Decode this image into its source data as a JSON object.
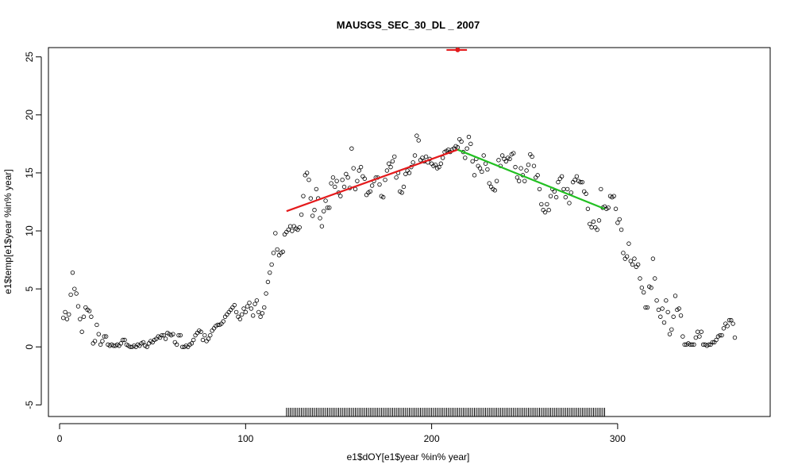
{
  "chart_data": {
    "type": "scatter",
    "title": "MAUSGS_SEC_30_DL _ 2007",
    "xlabel": "e1$dOY[e1$year %in% year]",
    "ylabel": "e1$temp[e1$year %in% year]",
    "xlim": [
      -6,
      382
    ],
    "ylim": [
      -6,
      25.8
    ],
    "xticks": [
      "0",
      "100",
      "200",
      "300"
    ],
    "xtick_values": [
      0,
      100,
      200,
      300
    ],
    "yticks": [
      "-5",
      "0",
      "5",
      "10",
      "15",
      "20",
      "25"
    ],
    "ytick_values": [
      -5,
      0,
      5,
      10,
      15,
      20,
      25
    ],
    "grid": false,
    "points": [
      [
        2,
        2.5
      ],
      [
        3,
        3.0
      ],
      [
        4,
        2.4
      ],
      [
        5,
        2.8
      ],
      [
        6,
        4.5
      ],
      [
        7,
        6.4
      ],
      [
        8,
        5.0
      ],
      [
        9,
        4.6
      ],
      [
        10,
        3.5
      ],
      [
        11,
        2.4
      ],
      [
        12,
        1.3
      ],
      [
        13,
        2.6
      ],
      [
        14,
        3.4
      ],
      [
        15,
        3.2
      ],
      [
        16,
        3.1
      ],
      [
        17,
        2.6
      ],
      [
        18,
        0.3
      ],
      [
        19,
        0.5
      ],
      [
        20,
        1.9
      ],
      [
        21,
        1.1
      ],
      [
        22,
        0.2
      ],
      [
        23,
        0.5
      ],
      [
        24,
        0.9
      ],
      [
        25,
        0.9
      ],
      [
        26,
        0.2
      ],
      [
        27,
        0.1
      ],
      [
        28,
        0.2
      ],
      [
        29,
        0.1
      ],
      [
        30,
        0.1
      ],
      [
        31,
        0.2
      ],
      [
        32,
        0.1
      ],
      [
        33,
        0.3
      ],
      [
        34,
        0.6
      ],
      [
        35,
        0.6
      ],
      [
        36,
        0.2
      ],
      [
        37,
        0.1
      ],
      [
        38,
        0.0
      ],
      [
        39,
        0.0
      ],
      [
        40,
        0.1
      ],
      [
        41,
        0.0
      ],
      [
        42,
        0.2
      ],
      [
        43,
        0.1
      ],
      [
        44,
        0.3
      ],
      [
        45,
        0.4
      ],
      [
        46,
        0.1
      ],
      [
        47,
        0.0
      ],
      [
        48,
        0.3
      ],
      [
        49,
        0.5
      ],
      [
        50,
        0.4
      ],
      [
        51,
        0.6
      ],
      [
        52,
        0.7
      ],
      [
        53,
        0.9
      ],
      [
        54,
        0.8
      ],
      [
        55,
        1.0
      ],
      [
        56,
        1.0
      ],
      [
        57,
        0.7
      ],
      [
        58,
        1.2
      ],
      [
        59,
        1.1
      ],
      [
        60,
        1.0
      ],
      [
        61,
        1.1
      ],
      [
        62,
        0.4
      ],
      [
        63,
        0.2
      ],
      [
        64,
        1.0
      ],
      [
        65,
        1.0
      ],
      [
        66,
        0.0
      ],
      [
        67,
        0.0
      ],
      [
        68,
        0.1
      ],
      [
        69,
        0.0
      ],
      [
        70,
        0.2
      ],
      [
        71,
        0.3
      ],
      [
        72,
        0.6
      ],
      [
        73,
        1.0
      ],
      [
        74,
        1.2
      ],
      [
        75,
        1.4
      ],
      [
        76,
        1.3
      ],
      [
        77,
        0.6
      ],
      [
        78,
        1.0
      ],
      [
        79,
        0.5
      ],
      [
        80,
        0.7
      ],
      [
        81,
        1.0
      ],
      [
        82,
        1.4
      ],
      [
        83,
        1.6
      ],
      [
        84,
        1.8
      ],
      [
        85,
        1.9
      ],
      [
        86,
        1.9
      ],
      [
        87,
        2.0
      ],
      [
        88,
        2.2
      ],
      [
        89,
        2.6
      ],
      [
        90,
        2.8
      ],
      [
        91,
        3.0
      ],
      [
        92,
        3.2
      ],
      [
        93,
        3.4
      ],
      [
        94,
        3.6
      ],
      [
        95,
        3.0
      ],
      [
        96,
        2.6
      ],
      [
        97,
        2.4
      ],
      [
        98,
        2.8
      ],
      [
        99,
        3.3
      ],
      [
        100,
        3.0
      ],
      [
        101,
        3.5
      ],
      [
        102,
        3.8
      ],
      [
        103,
        3.3
      ],
      [
        104,
        2.7
      ],
      [
        105,
        3.7
      ],
      [
        106,
        4.0
      ],
      [
        107,
        3.0
      ],
      [
        108,
        2.6
      ],
      [
        109,
        2.9
      ],
      [
        110,
        3.4
      ],
      [
        111,
        4.6
      ],
      [
        112,
        5.6
      ],
      [
        113,
        6.4
      ],
      [
        114,
        7.1
      ],
      [
        115,
        8.1
      ],
      [
        116,
        9.8
      ],
      [
        117,
        8.4
      ],
      [
        118,
        7.9
      ],
      [
        119,
        8.1
      ],
      [
        120,
        8.2
      ],
      [
        121,
        9.7
      ],
      [
        122,
        9.9
      ],
      [
        123,
        10.1
      ],
      [
        124,
        10.4
      ],
      [
        125,
        10.0
      ],
      [
        126,
        10.4
      ],
      [
        127,
        10.2
      ],
      [
        128,
        10.1
      ],
      [
        129,
        10.3
      ],
      [
        130,
        11.4
      ],
      [
        131,
        13.0
      ],
      [
        132,
        14.8
      ],
      [
        133,
        15.0
      ],
      [
        134,
        14.4
      ],
      [
        135,
        12.8
      ],
      [
        136,
        11.3
      ],
      [
        137,
        11.8
      ],
      [
        138,
        13.6
      ],
      [
        139,
        12.8
      ],
      [
        140,
        11.1
      ],
      [
        141,
        10.4
      ],
      [
        142,
        11.7
      ],
      [
        143,
        12.6
      ],
      [
        144,
        12.0
      ],
      [
        145,
        12.0
      ],
      [
        146,
        14.1
      ],
      [
        147,
        14.6
      ],
      [
        148,
        13.8
      ],
      [
        149,
        14.3
      ],
      [
        150,
        13.3
      ],
      [
        151,
        13.0
      ],
      [
        152,
        14.4
      ],
      [
        153,
        13.8
      ],
      [
        154,
        14.9
      ],
      [
        155,
        14.6
      ],
      [
        156,
        13.7
      ],
      [
        157,
        17.1
      ],
      [
        158,
        15.4
      ],
      [
        159,
        13.6
      ],
      [
        160,
        14.3
      ],
      [
        161,
        15.2
      ],
      [
        162,
        15.5
      ],
      [
        163,
        14.7
      ],
      [
        164,
        14.5
      ],
      [
        165,
        13.1
      ],
      [
        166,
        13.3
      ],
      [
        167,
        13.4
      ],
      [
        168,
        13.9
      ],
      [
        169,
        14.3
      ],
      [
        170,
        14.6
      ],
      [
        171,
        14.6
      ],
      [
        172,
        14.0
      ],
      [
        173,
        13.0
      ],
      [
        174,
        12.9
      ],
      [
        175,
        14.4
      ],
      [
        176,
        15.2
      ],
      [
        177,
        15.8
      ],
      [
        178,
        15.5
      ],
      [
        179,
        16.0
      ],
      [
        180,
        16.4
      ],
      [
        181,
        14.6
      ],
      [
        182,
        15.0
      ],
      [
        183,
        13.4
      ],
      [
        184,
        13.3
      ],
      [
        185,
        13.8
      ],
      [
        186,
        14.9
      ],
      [
        187,
        15.2
      ],
      [
        188,
        15.0
      ],
      [
        189,
        15.5
      ],
      [
        190,
        15.9
      ],
      [
        191,
        16.5
      ],
      [
        192,
        18.2
      ],
      [
        193,
        17.8
      ],
      [
        194,
        16.1
      ],
      [
        195,
        16.3
      ],
      [
        196,
        16.0
      ],
      [
        197,
        16.4
      ],
      [
        198,
        15.9
      ],
      [
        199,
        16.2
      ],
      [
        200,
        15.8
      ],
      [
        201,
        15.6
      ],
      [
        202,
        15.7
      ],
      [
        203,
        15.4
      ],
      [
        204,
        15.5
      ],
      [
        205,
        15.8
      ],
      [
        206,
        16.3
      ],
      [
        207,
        16.8
      ],
      [
        208,
        16.9
      ],
      [
        209,
        17.0
      ],
      [
        210,
        16.8
      ],
      [
        211,
        17.0
      ],
      [
        212,
        17.1
      ],
      [
        213,
        17.3
      ],
      [
        214,
        17.2
      ],
      [
        215,
        17.9
      ],
      [
        216,
        17.7
      ],
      [
        217,
        16.8
      ],
      [
        218,
        16.3
      ],
      [
        219,
        17.1
      ],
      [
        220,
        18.1
      ],
      [
        221,
        17.5
      ],
      [
        222,
        16.0
      ],
      [
        223,
        14.8
      ],
      [
        224,
        16.2
      ],
      [
        225,
        15.6
      ],
      [
        226,
        15.4
      ],
      [
        227,
        15.1
      ],
      [
        228,
        16.5
      ],
      [
        229,
        15.8
      ],
      [
        230,
        15.3
      ],
      [
        231,
        14.1
      ],
      [
        232,
        13.8
      ],
      [
        233,
        13.6
      ],
      [
        234,
        13.5
      ],
      [
        235,
        14.3
      ],
      [
        236,
        16.1
      ],
      [
        237,
        15.6
      ],
      [
        238,
        16.5
      ],
      [
        239,
        16.2
      ],
      [
        240,
        16.0
      ],
      [
        241,
        16.3
      ],
      [
        242,
        16.2
      ],
      [
        243,
        16.6
      ],
      [
        244,
        16.7
      ],
      [
        245,
        15.5
      ],
      [
        246,
        14.6
      ],
      [
        247,
        14.3
      ],
      [
        248,
        15.4
      ],
      [
        249,
        14.8
      ],
      [
        250,
        14.3
      ],
      [
        251,
        15.2
      ],
      [
        252,
        15.7
      ],
      [
        253,
        16.6
      ],
      [
        254,
        16.4
      ],
      [
        255,
        15.6
      ],
      [
        256,
        14.6
      ],
      [
        257,
        14.8
      ],
      [
        258,
        13.6
      ],
      [
        259,
        12.3
      ],
      [
        260,
        11.8
      ],
      [
        261,
        11.6
      ],
      [
        262,
        12.3
      ],
      [
        263,
        11.8
      ],
      [
        264,
        13.0
      ],
      [
        265,
        13.6
      ],
      [
        266,
        13.4
      ],
      [
        267,
        12.9
      ],
      [
        268,
        14.2
      ],
      [
        269,
        14.5
      ],
      [
        270,
        14.7
      ],
      [
        271,
        13.6
      ],
      [
        272,
        12.9
      ],
      [
        273,
        13.6
      ],
      [
        274,
        12.4
      ],
      [
        275,
        13.3
      ],
      [
        276,
        14.2
      ],
      [
        277,
        14.4
      ],
      [
        278,
        14.7
      ],
      [
        279,
        14.3
      ],
      [
        280,
        14.2
      ],
      [
        281,
        14.2
      ],
      [
        282,
        13.4
      ],
      [
        283,
        13.2
      ],
      [
        284,
        11.9
      ],
      [
        285,
        10.6
      ],
      [
        286,
        10.3
      ],
      [
        287,
        10.8
      ],
      [
        288,
        10.3
      ],
      [
        289,
        10.1
      ],
      [
        290,
        10.9
      ],
      [
        291,
        13.6
      ],
      [
        292,
        12.0
      ],
      [
        293,
        12.1
      ],
      [
        294,
        11.9
      ],
      [
        295,
        12.0
      ],
      [
        296,
        13.0
      ],
      [
        297,
        12.9
      ],
      [
        298,
        13.0
      ],
      [
        299,
        11.9
      ],
      [
        300,
        10.7
      ],
      [
        301,
        11.0
      ],
      [
        302,
        10.1
      ],
      [
        303,
        8.1
      ],
      [
        304,
        7.6
      ],
      [
        305,
        7.8
      ],
      [
        306,
        8.9
      ],
      [
        307,
        7.4
      ],
      [
        308,
        7.1
      ],
      [
        309,
        7.6
      ],
      [
        310,
        6.9
      ],
      [
        311,
        7.1
      ],
      [
        312,
        5.9
      ],
      [
        313,
        5.1
      ],
      [
        314,
        4.7
      ],
      [
        315,
        3.4
      ],
      [
        316,
        3.4
      ],
      [
        317,
        5.2
      ],
      [
        318,
        5.1
      ],
      [
        319,
        7.6
      ],
      [
        320,
        5.9
      ],
      [
        321,
        4.0
      ],
      [
        322,
        3.2
      ],
      [
        323,
        2.6
      ],
      [
        324,
        3.3
      ],
      [
        325,
        2.1
      ],
      [
        326,
        4.0
      ],
      [
        327,
        3.0
      ],
      [
        328,
        1.1
      ],
      [
        329,
        1.5
      ],
      [
        330,
        2.6
      ],
      [
        331,
        4.4
      ],
      [
        332,
        3.2
      ],
      [
        333,
        3.3
      ],
      [
        334,
        2.7
      ],
      [
        335,
        0.9
      ],
      [
        336,
        0.2
      ],
      [
        337,
        0.2
      ],
      [
        338,
        0.3
      ],
      [
        339,
        0.2
      ],
      [
        340,
        0.2
      ],
      [
        341,
        0.2
      ],
      [
        342,
        0.8
      ],
      [
        343,
        1.3
      ],
      [
        344,
        0.9
      ],
      [
        345,
        1.3
      ],
      [
        346,
        0.2
      ],
      [
        347,
        0.2
      ],
      [
        348,
        0.1
      ],
      [
        349,
        0.2
      ],
      [
        350,
        0.2
      ],
      [
        351,
        0.4
      ],
      [
        352,
        0.4
      ],
      [
        353,
        0.6
      ],
      [
        354,
        0.9
      ],
      [
        355,
        1.0
      ],
      [
        356,
        1.0
      ],
      [
        357,
        1.6
      ],
      [
        358,
        2.0
      ],
      [
        359,
        1.8
      ],
      [
        360,
        2.3
      ],
      [
        361,
        2.3
      ],
      [
        362,
        2.0
      ],
      [
        363,
        0.8
      ]
    ],
    "segments": [
      {
        "color": "#e41a1c",
        "from": [
          122,
          11.7
        ],
        "to": [
          214,
          17.0
        ]
      },
      {
        "color": "#22c022",
        "from": [
          214,
          17.0
        ],
        "to": [
          293,
          11.9
        ]
      },
      {
        "color": "#e41a1c",
        "from": [
          208,
          25.6
        ],
        "to": [
          219,
          25.6
        ],
        "marker_x": 214
      }
    ],
    "rug": {
      "from": 122,
      "to": 293,
      "color": "#000000"
    },
    "point_color": "#000000"
  }
}
